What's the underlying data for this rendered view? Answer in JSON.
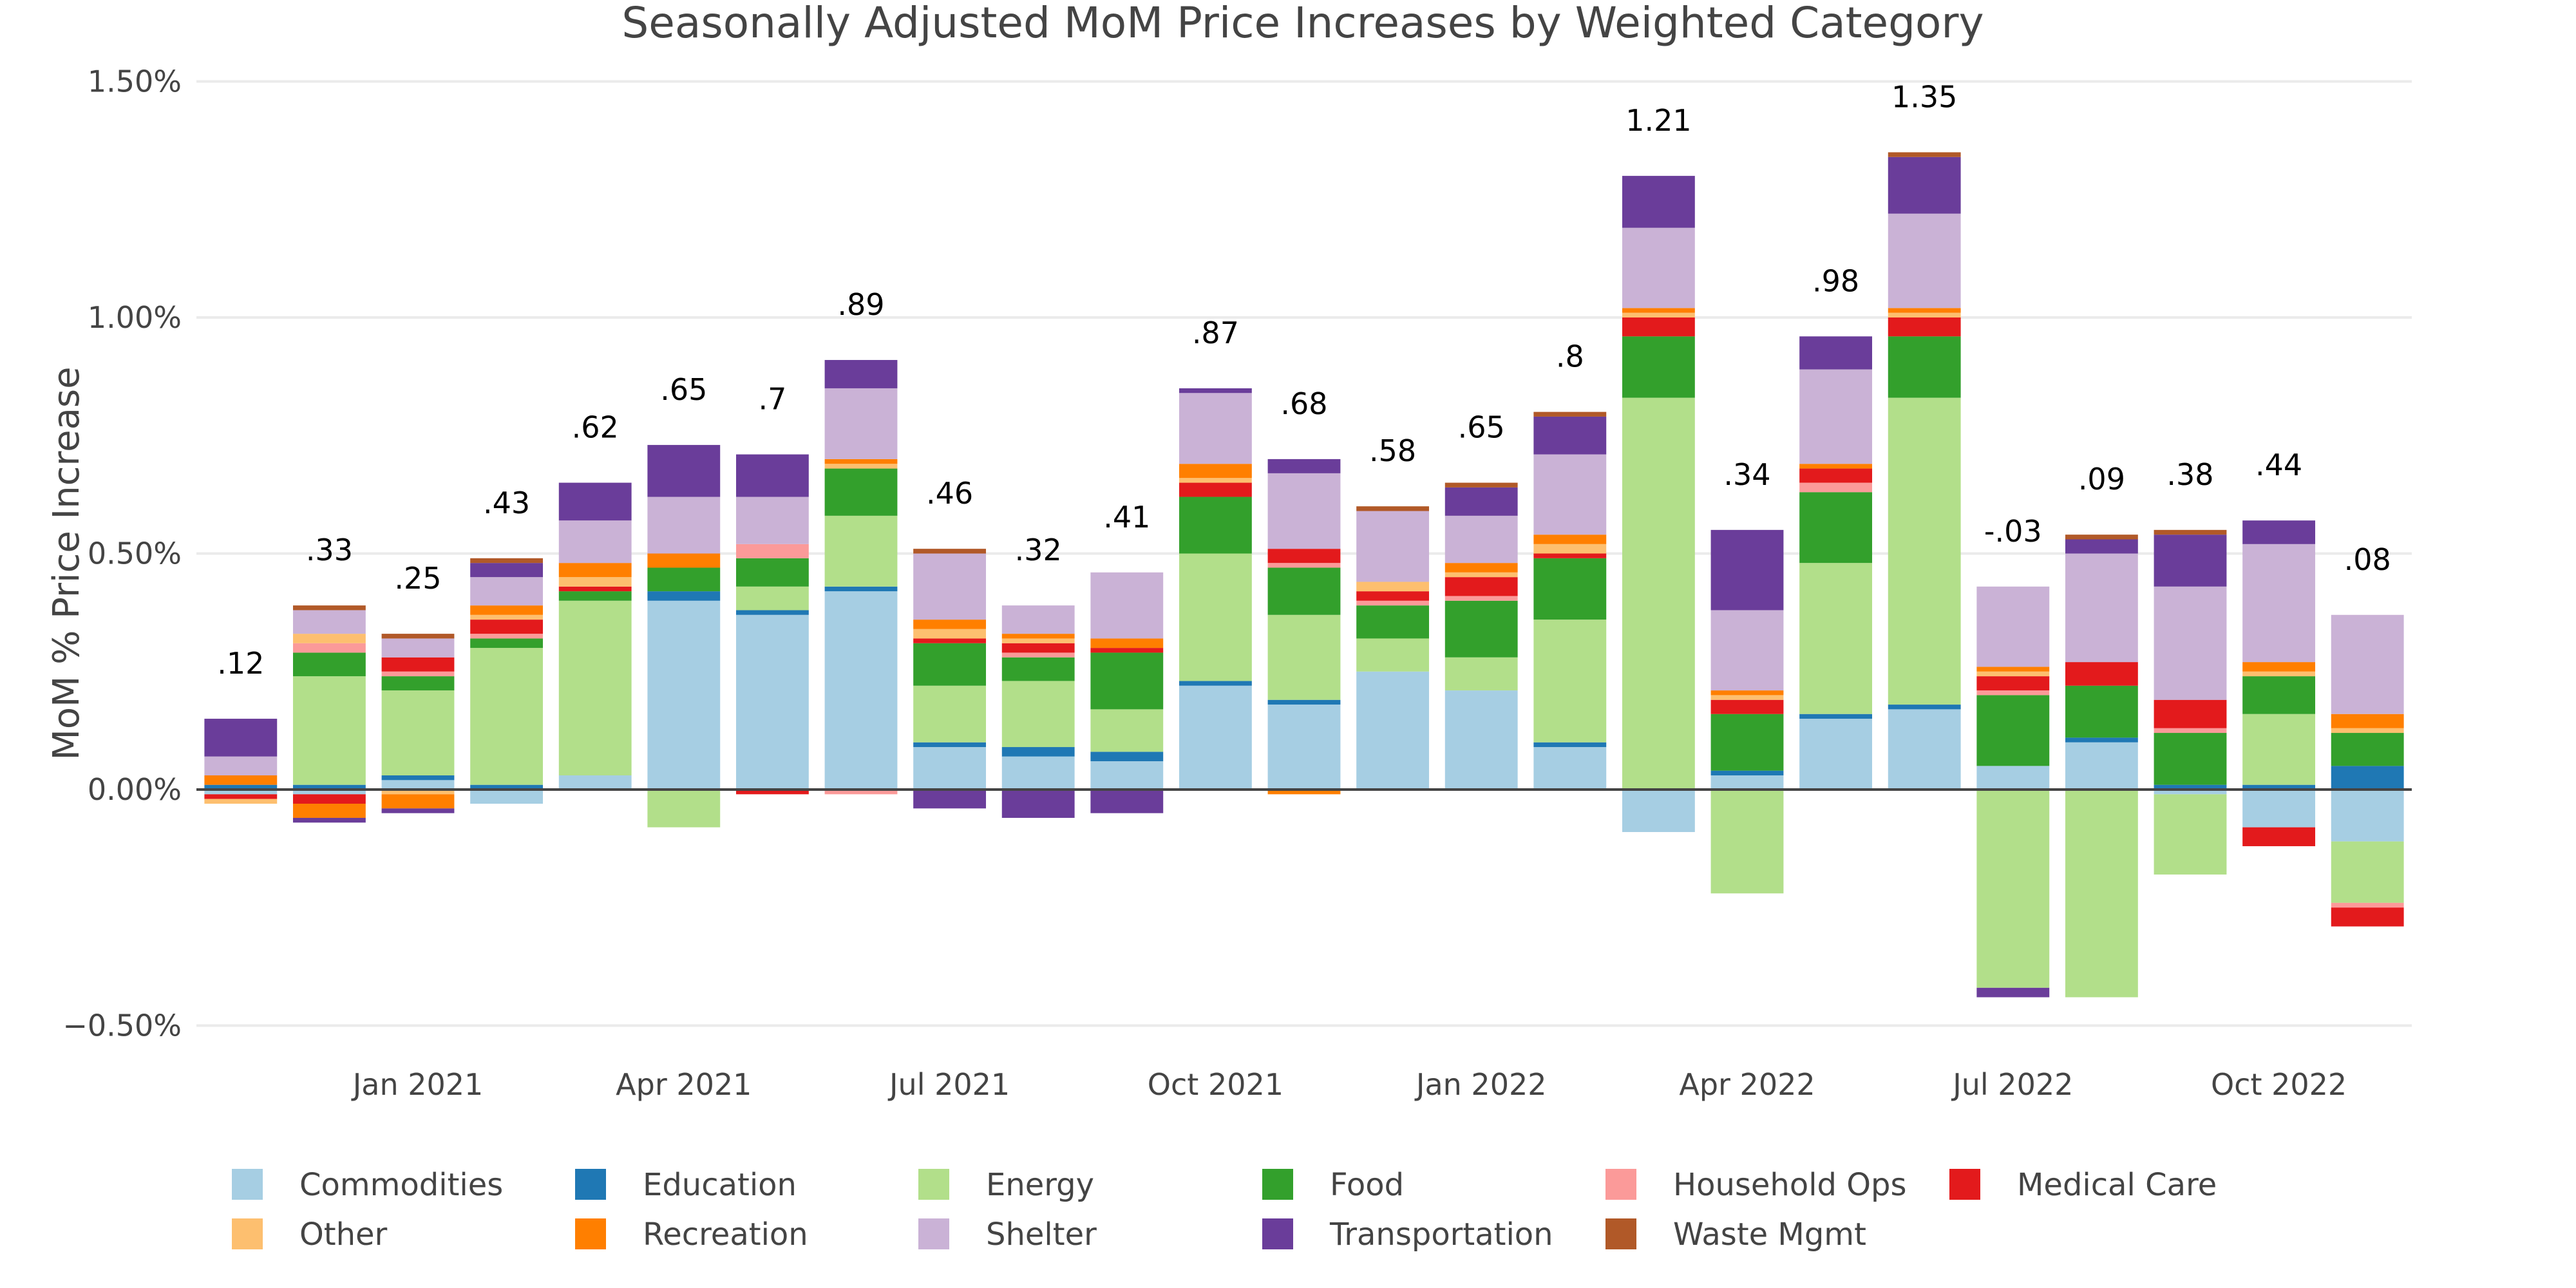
{
  "chart_data": {
    "type": "bar",
    "stacked": true,
    "title": "Seasonally Adjusted MoM Price Increases by Weighted Category",
    "xlabel": "",
    "ylabel": "MoM % Price Increase",
    "ylim": [
      -0.6,
      1.55
    ],
    "yticks": [
      -0.5,
      0.0,
      0.5,
      1.0,
      1.5
    ],
    "ytick_labels": [
      "−0.50%",
      "0.00%",
      "0.50%",
      "1.00%",
      "1.50%"
    ],
    "xtick_labels": [
      {
        "index": 2,
        "label": "Jan 2021"
      },
      {
        "index": 5,
        "label": "Apr 2021"
      },
      {
        "index": 8,
        "label": "Jul 2021"
      },
      {
        "index": 11,
        "label": "Oct 2021"
      },
      {
        "index": 14,
        "label": "Jan 2022"
      },
      {
        "index": 17,
        "label": "Apr 2022"
      },
      {
        "index": 20,
        "label": "Jul 2022"
      },
      {
        "index": 23,
        "label": "Oct 2022"
      }
    ],
    "grid": true,
    "legend_position": "bottom",
    "categories": [
      "Nov 2020",
      "Dec 2020",
      "Jan 2021",
      "Feb 2021",
      "Mar 2021",
      "Apr 2021",
      "May 2021",
      "Jun 2021",
      "Jul 2021",
      "Aug 2021",
      "Sep 2021",
      "Oct 2021",
      "Nov 2021",
      "Dec 2021",
      "Jan 2022",
      "Feb 2022",
      "Mar 2022",
      "Apr 2022",
      "May 2022",
      "Jun 2022",
      "Jul 2022",
      "Aug 2022",
      "Sep 2022",
      "Oct 2022",
      "Nov 2022"
    ],
    "totals": [
      ".12",
      ".33",
      ".25",
      ".43",
      ".62",
      ".65",
      ".7",
      ".89",
      ".46",
      ".32",
      ".41",
      ".87",
      ".68",
      ".58",
      ".65",
      ".8",
      "1.21",
      ".34",
      ".98",
      "1.35",
      "-.03",
      ".09",
      ".38",
      ".44",
      ".08"
    ],
    "total_colors": {
      "positive": "#000000",
      "negative": "#e00000"
    },
    "series": [
      {
        "name": "Commodities",
        "color": "#a6cee3",
        "values": [
          -0.01,
          -0.01,
          0.02,
          -0.03,
          0.03,
          0.4,
          0.37,
          0.42,
          0.09,
          0.07,
          0.06,
          0.22,
          0.18,
          0.25,
          0.21,
          0.09,
          -0.09,
          0.03,
          0.15,
          0.17,
          0.05,
          0.1,
          -0.01,
          -0.08,
          -0.11
        ]
      },
      {
        "name": "Education",
        "color": "#1f78b4",
        "values": [
          0.01,
          0.01,
          0.01,
          0.01,
          0.0,
          0.02,
          0.01,
          0.01,
          0.01,
          0.02,
          0.02,
          0.01,
          0.01,
          0.0,
          0.0,
          0.01,
          0.0,
          0.01,
          0.01,
          0.01,
          0.0,
          0.01,
          0.01,
          0.01,
          0.05
        ]
      },
      {
        "name": "Energy",
        "color": "#b2df8a",
        "values": [
          0.0,
          0.23,
          0.18,
          0.29,
          0.37,
          -0.08,
          0.05,
          0.15,
          0.12,
          0.14,
          0.09,
          0.27,
          0.18,
          0.07,
          0.07,
          0.26,
          0.83,
          -0.22,
          0.32,
          0.65,
          -0.42,
          -0.44,
          -0.17,
          0.15,
          -0.13
        ]
      },
      {
        "name": "Food",
        "color": "#33a02c",
        "values": [
          0.0,
          0.05,
          0.03,
          0.02,
          0.02,
          0.05,
          0.06,
          0.1,
          0.09,
          0.05,
          0.12,
          0.12,
          0.1,
          0.07,
          0.12,
          0.13,
          0.13,
          0.12,
          0.15,
          0.13,
          0.15,
          0.11,
          0.11,
          0.08,
          0.07
        ]
      },
      {
        "name": "Household Ops",
        "color": "#fb9a99",
        "values": [
          0.0,
          0.02,
          0.01,
          0.01,
          0.0,
          0.0,
          0.03,
          -0.01,
          0.0,
          0.01,
          0.0,
          0.0,
          0.01,
          0.01,
          0.01,
          0.0,
          0.0,
          0.0,
          0.02,
          0.0,
          0.01,
          0.0,
          0.01,
          0.0,
          -0.01
        ]
      },
      {
        "name": "Medical Care",
        "color": "#e31a1c",
        "values": [
          -0.01,
          -0.02,
          0.03,
          0.03,
          0.01,
          0.0,
          -0.01,
          0.0,
          0.01,
          0.02,
          0.01,
          0.03,
          0.03,
          0.02,
          0.04,
          0.01,
          0.04,
          0.03,
          0.03,
          0.04,
          0.03,
          0.05,
          0.06,
          -0.04,
          -0.04
        ]
      },
      {
        "name": "Other",
        "color": "#fdbf6f",
        "values": [
          -0.01,
          0.02,
          -0.01,
          0.01,
          0.02,
          0.0,
          0.0,
          0.01,
          0.02,
          0.01,
          0.0,
          0.01,
          0.0,
          0.02,
          0.01,
          0.02,
          0.01,
          0.01,
          0.0,
          0.01,
          0.01,
          0.0,
          0.0,
          0.01,
          0.01
        ]
      },
      {
        "name": "Recreation",
        "color": "#ff7f00",
        "values": [
          0.02,
          -0.03,
          -0.03,
          0.02,
          0.03,
          0.03,
          0.0,
          0.01,
          0.02,
          0.01,
          0.02,
          0.03,
          -0.01,
          0.0,
          0.02,
          0.02,
          0.01,
          0.01,
          0.01,
          0.01,
          0.01,
          0.0,
          0.0,
          0.02,
          0.03
        ]
      },
      {
        "name": "Shelter",
        "color": "#cab2d6",
        "values": [
          0.04,
          0.05,
          0.04,
          0.06,
          0.09,
          0.12,
          0.1,
          0.15,
          0.14,
          0.06,
          0.14,
          0.15,
          0.16,
          0.15,
          0.1,
          0.17,
          0.17,
          0.17,
          0.2,
          0.2,
          0.17,
          0.23,
          0.24,
          0.25,
          0.21
        ]
      },
      {
        "name": "Transportation",
        "color": "#6a3d9a",
        "values": [
          0.08,
          -0.01,
          -0.01,
          0.03,
          0.08,
          0.11,
          0.09,
          0.06,
          -0.04,
          -0.06,
          -0.05,
          0.01,
          0.03,
          0.0,
          0.06,
          0.08,
          0.11,
          0.17,
          0.07,
          0.12,
          -0.02,
          0.03,
          0.11,
          0.05,
          0.0
        ]
      },
      {
        "name": "Waste Mgmt",
        "color": "#b15928",
        "values": [
          0.0,
          0.01,
          0.01,
          0.01,
          0.0,
          0.0,
          0.0,
          0.0,
          0.01,
          0.0,
          0.0,
          0.0,
          0.0,
          0.01,
          0.01,
          0.01,
          0.0,
          0.0,
          0.0,
          0.01,
          0.0,
          0.01,
          0.01,
          0.0,
          0.0
        ]
      }
    ]
  },
  "legend_rows": [
    [
      "Commodities",
      "Education",
      "Energy",
      "Food",
      "Household Ops",
      "Medical Care"
    ],
    [
      "Other",
      "Recreation",
      "Shelter",
      "Transportation",
      "Waste Mgmt"
    ]
  ]
}
